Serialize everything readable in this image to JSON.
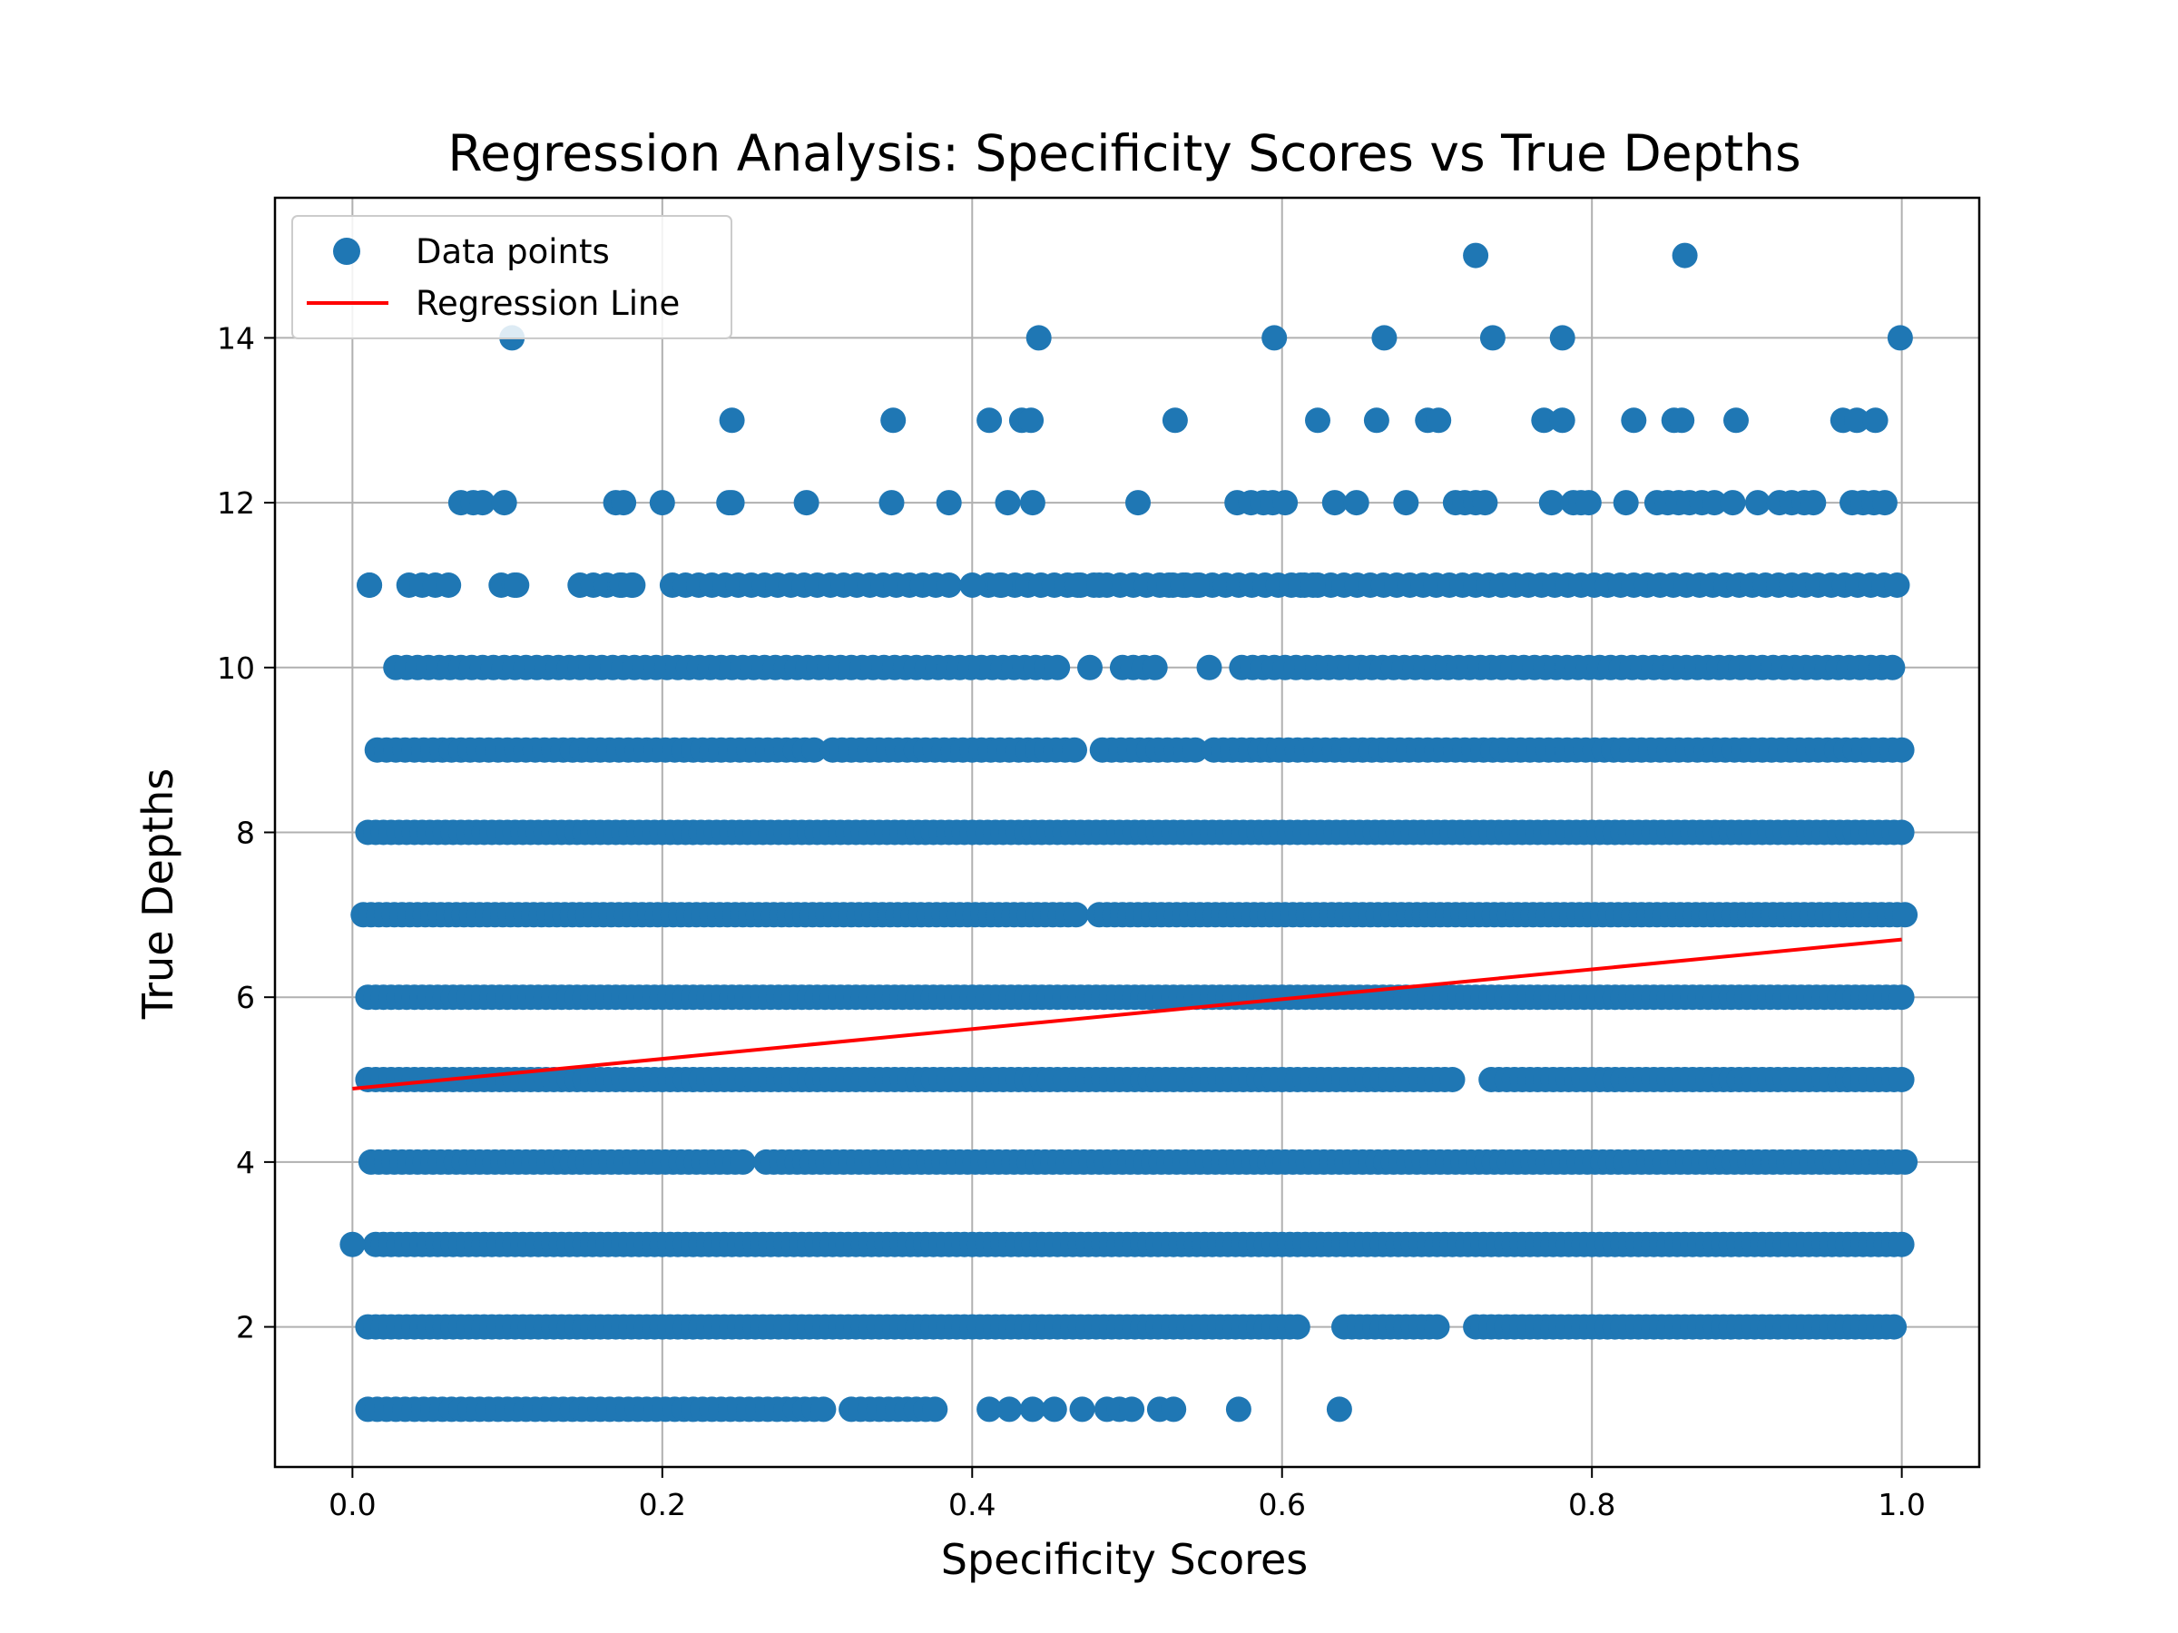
{
  "chart_data": {
    "type": "scatter",
    "title": "Regression Analysis: Specificity Scores vs True Depths",
    "xlabel": "Specificity Scores",
    "ylabel": "True Depths",
    "xlim": [
      -0.05,
      1.05
    ],
    "ylim": [
      0.3,
      15.7
    ],
    "xticks": [
      0.0,
      0.2,
      0.4,
      0.6,
      0.8,
      1.0
    ],
    "xtick_labels": [
      "0.0",
      "0.2",
      "0.4",
      "0.6",
      "0.8",
      "1.0"
    ],
    "yticks": [
      2,
      4,
      6,
      8,
      10,
      12,
      14
    ],
    "ytick_labels": [
      "2",
      "4",
      "6",
      "8",
      "10",
      "12",
      "14"
    ],
    "grid": true,
    "legend_position": "upper-left",
    "series": [
      {
        "name": "Data points",
        "kind": "scatter",
        "color": "#1f77b4",
        "points": [
          [
            0.0,
            3
          ],
          [
            0.103,
            14
          ],
          [
            0.443,
            14
          ],
          [
            0.595,
            14
          ],
          [
            0.666,
            14
          ],
          [
            0.736,
            14
          ],
          [
            0.781,
            14
          ],
          [
            0.999,
            14
          ],
          [
            0.725,
            15
          ],
          [
            0.86,
            15
          ],
          [
            0.245,
            13
          ],
          [
            0.349,
            13
          ],
          [
            0.411,
            13
          ],
          [
            0.432,
            13
          ],
          [
            0.438,
            13
          ],
          [
            0.531,
            13
          ],
          [
            0.623,
            13
          ],
          [
            0.661,
            13
          ],
          [
            0.694,
            13
          ],
          [
            0.701,
            13
          ],
          [
            0.769,
            13
          ],
          [
            0.781,
            13
          ],
          [
            0.827,
            13
          ],
          [
            0.853,
            13
          ],
          [
            0.858,
            13
          ],
          [
            0.893,
            13
          ],
          [
            0.962,
            13
          ],
          [
            0.971,
            13
          ],
          [
            0.983,
            13
          ],
          [
            0.07,
            12
          ],
          [
            0.078,
            12
          ],
          [
            0.084,
            12
          ],
          [
            0.098,
            12
          ],
          [
            0.17,
            12
          ],
          [
            0.175,
            12
          ],
          [
            0.2,
            12
          ],
          [
            0.243,
            12
          ],
          [
            0.245,
            12
          ],
          [
            0.293,
            12
          ],
          [
            0.348,
            12
          ],
          [
            0.385,
            12
          ],
          [
            0.423,
            12
          ],
          [
            0.439,
            12
          ],
          [
            0.507,
            12
          ],
          [
            0.571,
            12
          ],
          [
            0.58,
            12
          ],
          [
            0.588,
            12
          ],
          [
            0.594,
            12
          ],
          [
            0.602,
            12
          ],
          [
            0.634,
            12
          ],
          [
            0.648,
            12
          ],
          [
            0.68,
            12
          ],
          [
            0.712,
            12
          ],
          [
            0.718,
            12
          ],
          [
            0.725,
            12
          ],
          [
            0.731,
            12
          ],
          [
            0.774,
            12
          ],
          [
            0.788,
            12
          ],
          [
            0.793,
            12
          ],
          [
            0.798,
            12
          ],
          [
            0.822,
            12
          ],
          [
            0.842,
            12
          ],
          [
            0.849,
            12
          ],
          [
            0.856,
            12
          ],
          [
            0.863,
            12
          ],
          [
            0.871,
            12
          ],
          [
            0.879,
            12
          ],
          [
            0.891,
            12
          ],
          [
            0.907,
            12
          ],
          [
            0.921,
            12
          ],
          [
            0.929,
            12
          ],
          [
            0.937,
            12
          ],
          [
            0.943,
            12
          ],
          [
            0.968,
            12
          ],
          [
            0.975,
            12
          ],
          [
            0.982,
            12
          ],
          [
            0.989,
            12
          ],
          [
            0.011,
            11
          ],
          [
            0.106,
            11
          ],
          [
            0.174,
            11
          ],
          [
            0.18,
            11
          ],
          [
            0.4,
            11
          ],
          [
            0.418,
            11
          ],
          [
            0.468,
            11
          ],
          [
            0.482,
            11
          ],
          [
            0.527,
            11
          ],
          [
            0.536,
            11
          ],
          [
            0.545,
            11
          ],
          [
            0.612,
            11
          ],
          [
            0.62,
            11
          ]
        ],
        "rows": [
          {
            "y": 11,
            "x_min": 0.011,
            "x_max": 1.0,
            "step": 0.0085,
            "gaps": [
              [
                0.016,
                0.032
              ],
              [
                0.068,
                0.095
              ],
              [
                0.112,
                0.145
              ],
              [
                0.187,
                0.205
              ],
              [
                0.39,
                0.405
              ]
            ]
          },
          {
            "y": 10,
            "x_min": 0.028,
            "x_max": 1.0,
            "step": 0.007,
            "gaps": [
              [
                0.46,
                0.472
              ],
              [
                0.48,
                0.495
              ],
              [
                0.523,
                0.548
              ],
              [
                0.557,
                0.568
              ]
            ]
          },
          {
            "y": 9,
            "x_min": 0.016,
            "x_max": 1.0,
            "step": 0.006,
            "gaps": [
              [
                0.3,
                0.305
              ],
              [
                0.47,
                0.48
              ],
              [
                0.546,
                0.553
              ]
            ]
          },
          {
            "y": 8,
            "x_min": 0.01,
            "x_max": 1.0,
            "step": 0.005,
            "gaps": []
          },
          {
            "y": 7,
            "x_min": 0.007,
            "x_max": 1.003,
            "step": 0.005,
            "gaps": [
              [
                0.468,
                0.478
              ]
            ]
          },
          {
            "y": 6,
            "x_min": 0.01,
            "x_max": 1.0,
            "step": 0.005,
            "gaps": []
          },
          {
            "y": 5,
            "x_min": 0.01,
            "x_max": 1.003,
            "step": 0.005,
            "gaps": [
              [
                0.712,
                0.735
              ]
            ]
          },
          {
            "y": 4,
            "x_min": 0.012,
            "x_max": 1.003,
            "step": 0.005,
            "gaps": [
              [
                0.255,
                0.265
              ]
            ]
          },
          {
            "y": 3,
            "x_min": 0.015,
            "x_max": 1.0,
            "step": 0.005,
            "gaps": []
          },
          {
            "y": 2,
            "x_min": 0.01,
            "x_max": 0.995,
            "step": 0.005,
            "gaps": [
              [
                0.612,
                0.638
              ],
              [
                0.705,
                0.722
              ]
            ]
          },
          {
            "y": 1,
            "x_min": 0.01,
            "x_max": 0.38,
            "step": 0.006,
            "gaps": [
              [
                0.305,
                0.32
              ]
            ],
            "extra": [
              0.411,
              0.424,
              0.439,
              0.453,
              0.471,
              0.487,
              0.495,
              0.503,
              0.521,
              0.53,
              0.572,
              0.637
            ]
          }
        ]
      },
      {
        "name": "Regression Line",
        "kind": "line",
        "color": "#ff0000",
        "x": [
          0.0,
          1.0
        ],
        "y": [
          4.89,
          6.7
        ]
      }
    ]
  }
}
